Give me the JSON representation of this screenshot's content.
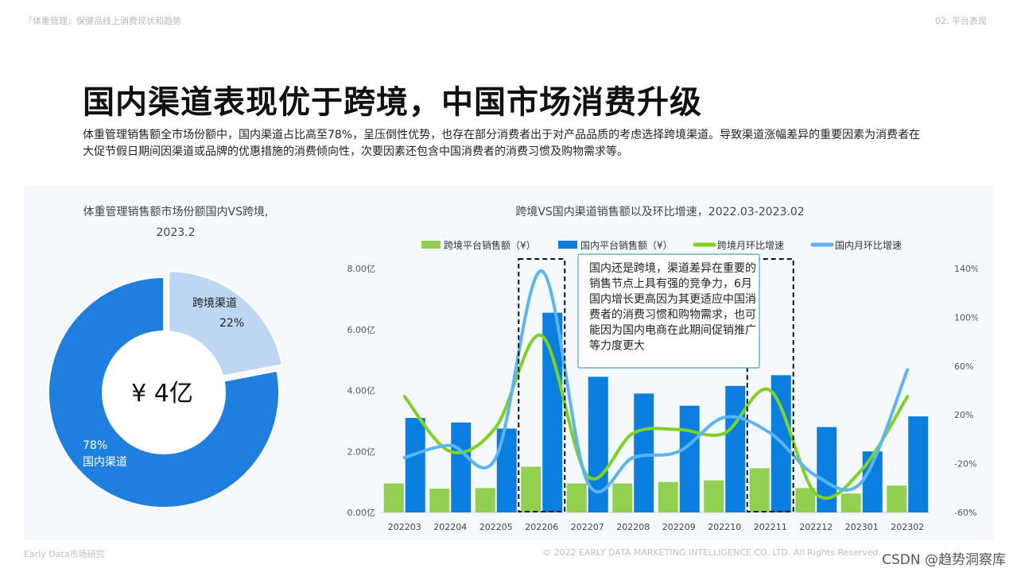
{
  "header": {
    "left": "『体重管理』保健品线上消费现状和趋势",
    "right": "02. 平台表现"
  },
  "title": "国内渠道表现优于跨境，中国市场消费升级",
  "subtitle": "体重管理销售额全市场份额中，国内渠道占比高至78%，呈压倒性优势，也存在部分消费者出于对产品品质的考虑选择跨境渠道。导致渠道涨幅差异的重要因素为消费者在大促节假日期间因渠道或品牌的优惠措施的消费倾向性，次要因素还包含中国消费者的消费习惯及购物需求等。",
  "footer": {
    "left": "Early Data市场研究",
    "right": "© 2022 EARLY DATA MARKETING INTELLIGENCE CO. LTD. All Rights Reserved.",
    "watermark": "CSDN @趋势洞察库"
  },
  "chart_data": [
    {
      "type": "pie",
      "title_line1": "体重管理销售额市场份额国内VS跨境,",
      "title_line2": "2023.2",
      "center_label": "¥ 4亿",
      "slices": [
        {
          "name": "跨境渠道",
          "value": 22,
          "label": "22%",
          "color": "#bdd7f3"
        },
        {
          "name": "国内渠道",
          "value": 78,
          "label": "78%",
          "color": "#1f7fdf"
        }
      ]
    },
    {
      "type": "bar",
      "title": "跨境VS国内渠道销售额以及环比增速，2022.03-2023.02",
      "categories": [
        "202203",
        "202204",
        "202205",
        "202206",
        "202207",
        "202208",
        "202209",
        "202210",
        "202211",
        "202212",
        "202301",
        "202302"
      ],
      "series": [
        {
          "name": "跨境平台销售额（¥）",
          "kind": "bar",
          "axis": "left",
          "color": "#92d050",
          "values": [
            0.95,
            0.78,
            0.8,
            1.5,
            0.95,
            0.95,
            1.0,
            1.05,
            1.45,
            0.8,
            0.62,
            0.88
          ]
        },
        {
          "name": "国内平台销售额（¥）",
          "kind": "bar",
          "axis": "left",
          "color": "#0a7fe0",
          "values": [
            3.1,
            2.95,
            2.75,
            6.55,
            4.45,
            3.9,
            3.5,
            4.15,
            4.5,
            2.8,
            2.0,
            3.15
          ]
        },
        {
          "name": "跨境月环比增速",
          "kind": "line",
          "axis": "right",
          "color": "#7ed321",
          "values": [
            35,
            -10,
            10,
            85,
            -30,
            5,
            8,
            5,
            40,
            -45,
            -25,
            35
          ]
        },
        {
          "name": "国内月环比增速",
          "kind": "line",
          "axis": "right",
          "color": "#5ab4f5",
          "values": [
            -15,
            -5,
            -15,
            138,
            -35,
            -15,
            -10,
            18,
            5,
            -30,
            -35,
            57
          ]
        }
      ],
      "left_axis": {
        "ylim": [
          0,
          8
        ],
        "ticks": [
          "0.00亿",
          "2.00亿",
          "4.00亿",
          "6.00亿",
          "8.00亿"
        ],
        "tick_values": [
          0,
          2,
          4,
          6,
          8
        ]
      },
      "right_axis": {
        "ylim": [
          -60,
          140
        ],
        "ticks": [
          "-60%",
          "-20%",
          "20%",
          "60%",
          "100%",
          "140%"
        ],
        "tick_values": [
          -60,
          -20,
          20,
          60,
          100,
          140
        ]
      },
      "legend_placement": "top",
      "highlight_boxes": [
        "202206",
        "202211"
      ],
      "annotation": "国内还是跨境，渠道差异在重要的销售节点上具有强的竞争力，6月国内增长更高因为其更适应中国消费者的消费习惯和购物需求，也可能因为国内电商在此期间促销推广等力度更大"
    }
  ]
}
